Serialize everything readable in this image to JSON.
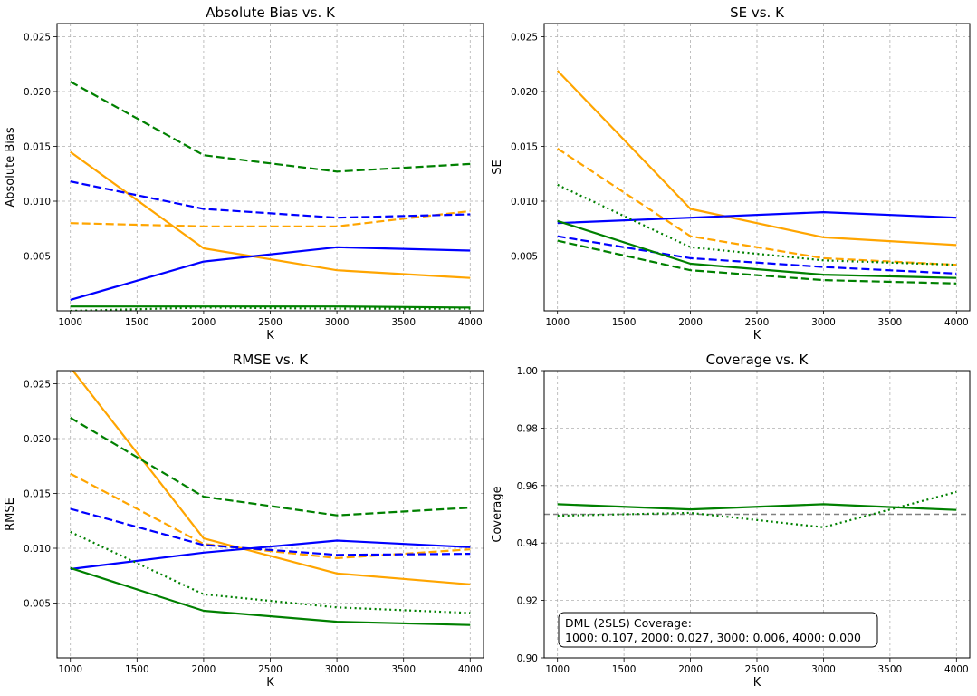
{
  "chart_data": [
    {
      "type": "line",
      "title": "Absolute Bias vs. K",
      "xlabel": "K",
      "ylabel": "Absolute Bias",
      "xlim": [
        900,
        4100
      ],
      "ylim": [
        0.0,
        0.0262
      ],
      "xticks": [
        1000,
        1500,
        2000,
        2500,
        3000,
        3500,
        4000
      ],
      "yticks": [
        0.005,
        0.01,
        0.015,
        0.02,
        0.025
      ],
      "ytick_labels": [
        "0.005",
        "0.010",
        "0.015",
        "0.020",
        "0.025"
      ],
      "grid": true,
      "x": [
        1000,
        2000,
        3000,
        4000
      ],
      "series": [
        {
          "color": "#ffa500",
          "linestyle": "solid",
          "values": [
            0.0145,
            0.0057,
            0.0037,
            0.003
          ]
        },
        {
          "color": "#ffa500",
          "linestyle": "dashed",
          "values": [
            0.008,
            0.0077,
            0.0077,
            0.0091
          ]
        },
        {
          "color": "#0000ff",
          "linestyle": "solid",
          "values": [
            0.001,
            0.0045,
            0.0058,
            0.0055
          ]
        },
        {
          "color": "#0000ff",
          "linestyle": "dashed",
          "values": [
            0.0118,
            0.0093,
            0.0085,
            0.0088
          ]
        },
        {
          "color": "#008000",
          "linestyle": "solid",
          "values": [
            0.0004,
            0.0004,
            0.0004,
            0.0003
          ]
        },
        {
          "color": "#008000",
          "linestyle": "dashed",
          "values": [
            0.0209,
            0.0142,
            0.0127,
            0.0134
          ]
        },
        {
          "color": "#008000",
          "linestyle": "dotted",
          "values": [
            0.0,
            0.0003,
            0.0002,
            0.0002
          ]
        }
      ]
    },
    {
      "type": "line",
      "title": "SE vs. K",
      "xlabel": "K",
      "ylabel": "SE",
      "xlim": [
        900,
        4100
      ],
      "ylim": [
        0.0,
        0.0262
      ],
      "xticks": [
        1000,
        1500,
        2000,
        2500,
        3000,
        3500,
        4000
      ],
      "yticks": [
        0.005,
        0.01,
        0.015,
        0.02,
        0.025
      ],
      "ytick_labels": [
        "0.005",
        "0.010",
        "0.015",
        "0.020",
        "0.025"
      ],
      "grid": true,
      "x": [
        1000,
        2000,
        3000,
        4000
      ],
      "series": [
        {
          "color": "#ffa500",
          "linestyle": "solid",
          "values": [
            0.0219,
            0.0093,
            0.0067,
            0.006
          ]
        },
        {
          "color": "#ffa500",
          "linestyle": "dashed",
          "values": [
            0.0148,
            0.0068,
            0.0048,
            0.0042
          ]
        },
        {
          "color": "#0000ff",
          "linestyle": "solid",
          "values": [
            0.008,
            0.0085,
            0.009,
            0.0085
          ]
        },
        {
          "color": "#0000ff",
          "linestyle": "dashed",
          "values": [
            0.0068,
            0.0048,
            0.004,
            0.0034
          ]
        },
        {
          "color": "#008000",
          "linestyle": "solid",
          "values": [
            0.0082,
            0.0043,
            0.0033,
            0.003
          ]
        },
        {
          "color": "#008000",
          "linestyle": "dashed",
          "values": [
            0.0064,
            0.0037,
            0.0028,
            0.0025
          ]
        },
        {
          "color": "#008000",
          "linestyle": "dotted",
          "values": [
            0.0115,
            0.0058,
            0.0046,
            0.0042
          ]
        }
      ]
    },
    {
      "type": "line",
      "title": "RMSE vs. K",
      "xlabel": "K",
      "ylabel": "RMSE",
      "xlim": [
        900,
        4100
      ],
      "ylim": [
        0.0,
        0.0262
      ],
      "xticks": [
        1000,
        1500,
        2000,
        2500,
        3000,
        3500,
        4000
      ],
      "yticks": [
        0.005,
        0.01,
        0.015,
        0.02,
        0.025
      ],
      "ytick_labels": [
        "0.005",
        "0.010",
        "0.015",
        "0.020",
        "0.025"
      ],
      "grid": true,
      "x": [
        1000,
        2000,
        3000,
        4000
      ],
      "series": [
        {
          "color": "#ffa500",
          "linestyle": "solid",
          "values": [
            0.0265,
            0.0109,
            0.0077,
            0.0067
          ]
        },
        {
          "color": "#ffa500",
          "linestyle": "dashed",
          "values": [
            0.0168,
            0.0104,
            0.0091,
            0.0099
          ]
        },
        {
          "color": "#0000ff",
          "linestyle": "solid",
          "values": [
            0.0081,
            0.0096,
            0.0107,
            0.0101
          ]
        },
        {
          "color": "#0000ff",
          "linestyle": "dashed",
          "values": [
            0.0136,
            0.0103,
            0.0094,
            0.0095
          ]
        },
        {
          "color": "#008000",
          "linestyle": "solid",
          "values": [
            0.0082,
            0.0043,
            0.0033,
            0.003
          ]
        },
        {
          "color": "#008000",
          "linestyle": "dashed",
          "values": [
            0.0219,
            0.0147,
            0.013,
            0.0137
          ]
        },
        {
          "color": "#008000",
          "linestyle": "dotted",
          "values": [
            0.0115,
            0.0058,
            0.0046,
            0.0041
          ]
        }
      ]
    },
    {
      "type": "line",
      "title": "Coverage vs. K",
      "xlabel": "K",
      "ylabel": "Coverage",
      "xlim": [
        900,
        4100
      ],
      "ylim": [
        0.9,
        1.0
      ],
      "xticks": [
        1000,
        1500,
        2000,
        2500,
        3000,
        3500,
        4000
      ],
      "yticks": [
        0.9,
        0.92,
        0.94,
        0.96,
        0.98,
        1.0
      ],
      "ytick_labels": [
        "0.90",
        "0.92",
        "0.94",
        "0.96",
        "0.98",
        "1.00"
      ],
      "grid": true,
      "x": [
        1000,
        2000,
        3000,
        4000
      ],
      "series": [
        {
          "color": "#008000",
          "linestyle": "solid",
          "values": [
            0.9535,
            0.9517,
            0.9535,
            0.9515
          ]
        },
        {
          "color": "#008000",
          "linestyle": "dotted",
          "values": [
            0.9495,
            0.9505,
            0.9455,
            0.9578
          ]
        }
      ],
      "reference_line": {
        "y": 0.95,
        "color": "#808080",
        "linestyle": "dashed"
      },
      "annotation": {
        "line1": "DML (2SLS) Coverage:",
        "line2": "1000: 0.107, 2000: 0.027, 3000: 0.006, 4000: 0.000"
      }
    }
  ]
}
